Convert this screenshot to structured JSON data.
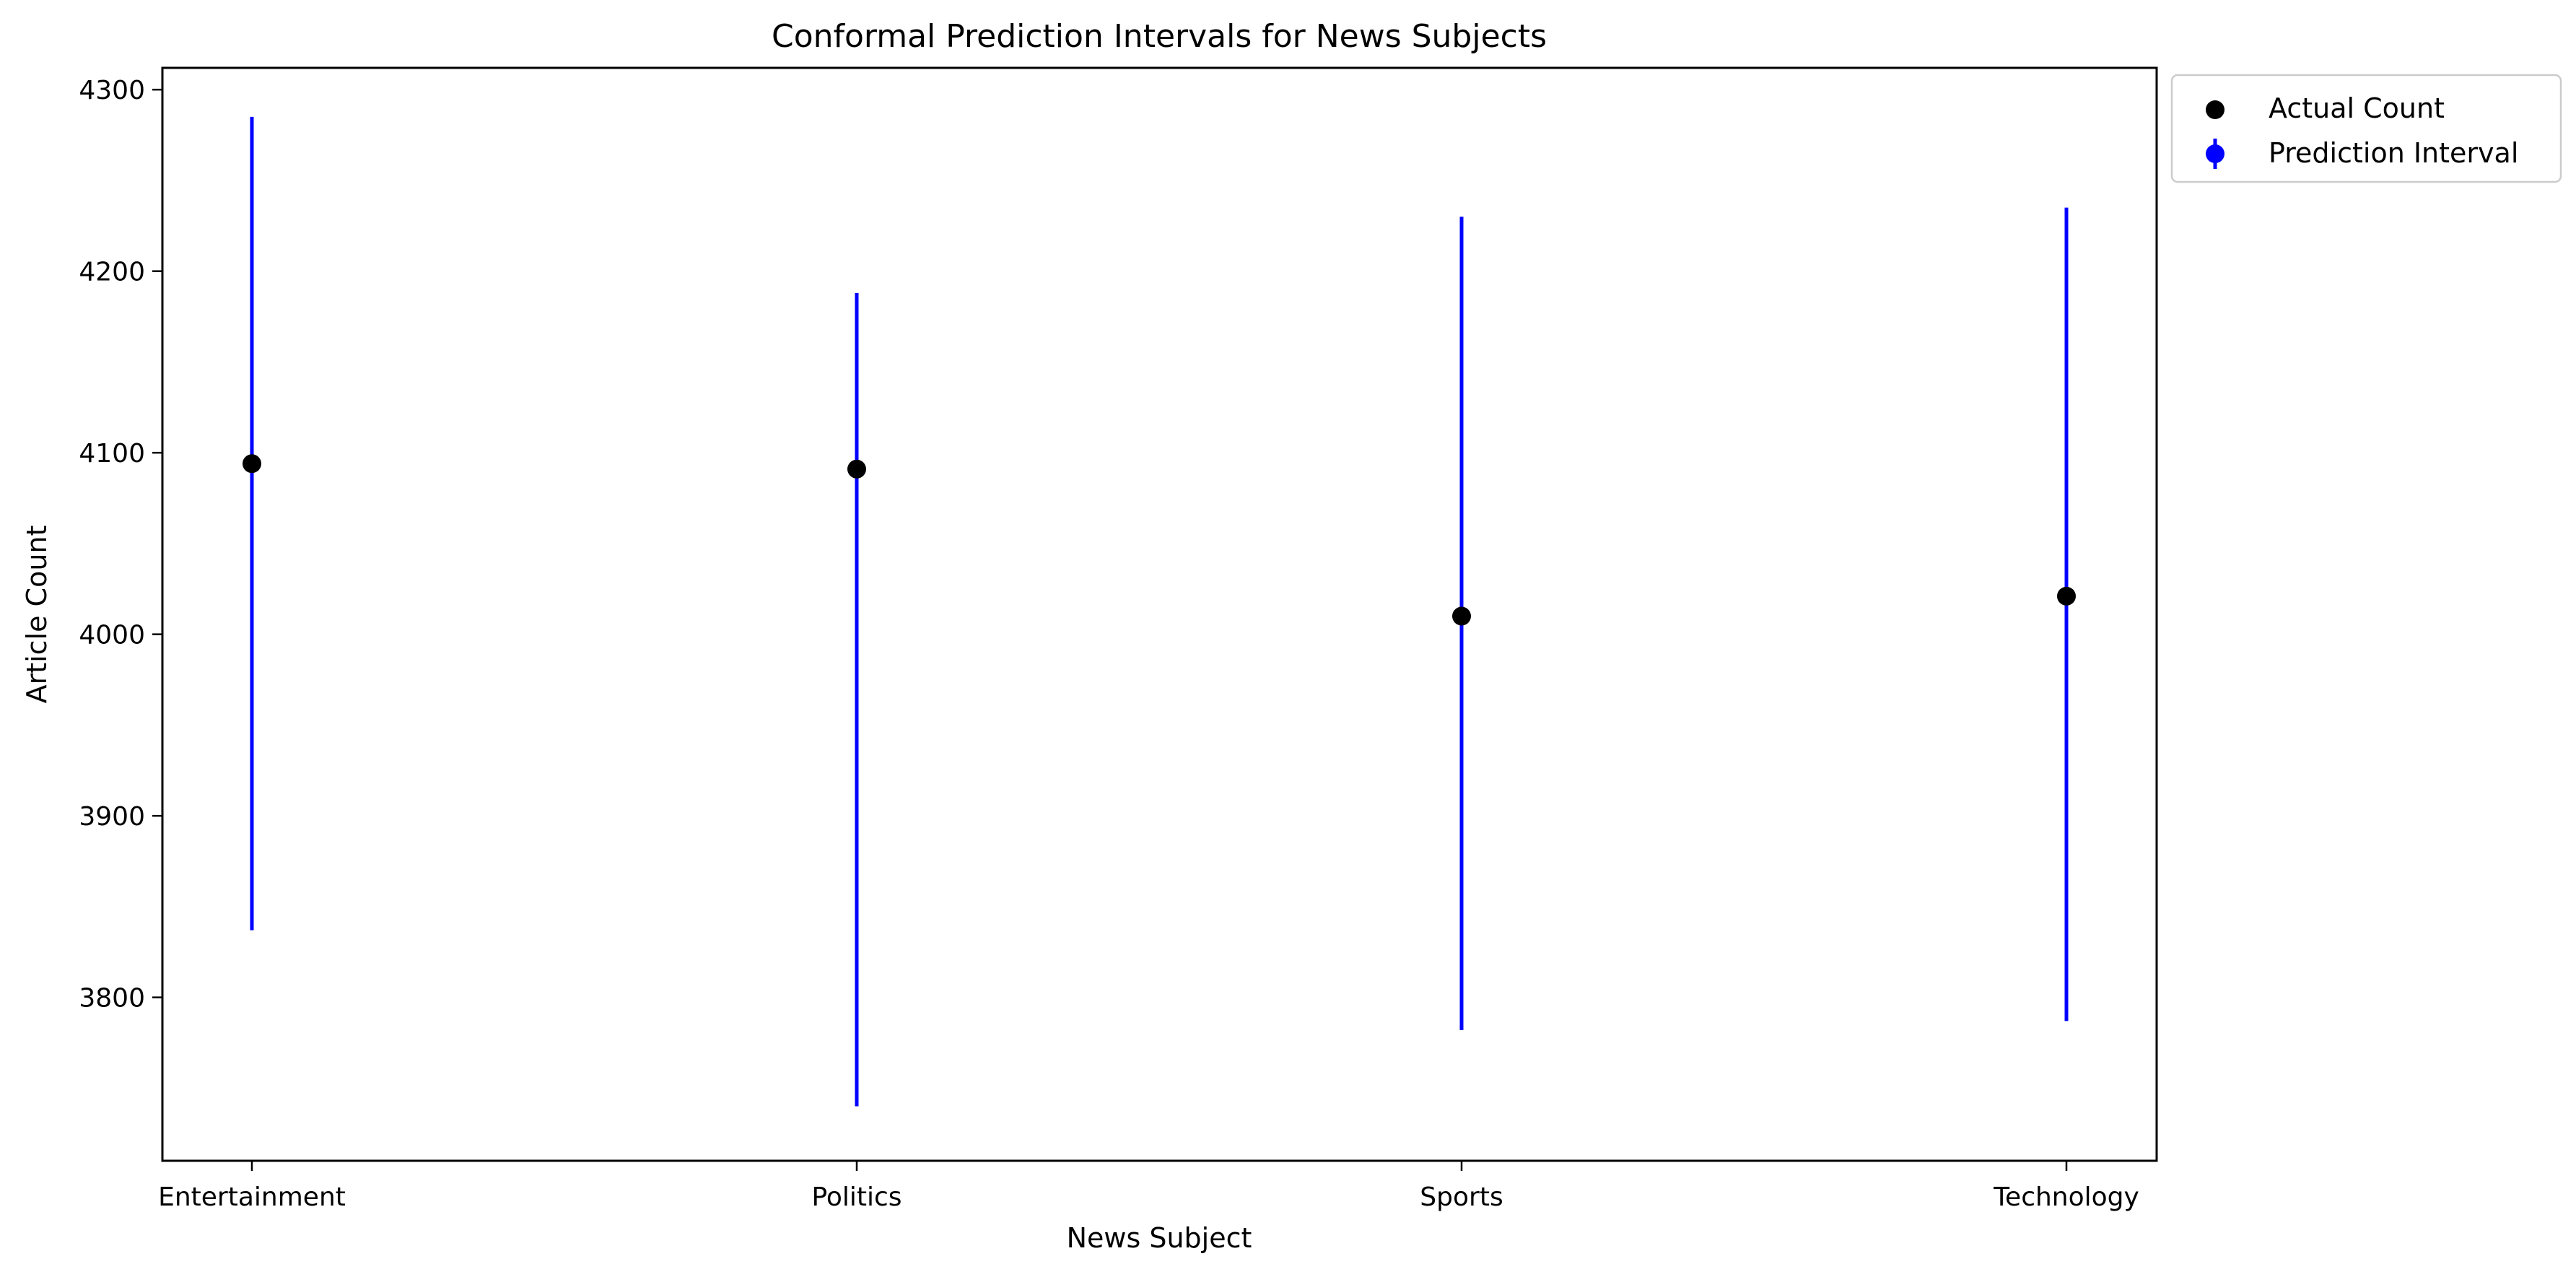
{
  "chart_data": {
    "type": "scatter",
    "title": "Conformal Prediction Intervals for News Subjects",
    "xlabel": "News Subject",
    "ylabel": "Article Count",
    "categories": [
      "Entertainment",
      "Politics",
      "Sports",
      "Technology"
    ],
    "series": [
      {
        "name": "Actual Count",
        "kind": "points",
        "values": [
          4094,
          4091,
          4010,
          4021
        ],
        "color": "#000000"
      },
      {
        "name": "Prediction Interval",
        "kind": "intervals",
        "lower": [
          3837,
          3740,
          3782,
          3787
        ],
        "upper": [
          4285,
          4188,
          4230,
          4235
        ],
        "color": "#0000ff"
      }
    ],
    "ylim": [
      3710,
      4312
    ],
    "yticks": [
      3800,
      3900,
      4000,
      4100,
      4200,
      4300
    ],
    "grid": false,
    "legend_position": "outside-top-right"
  }
}
